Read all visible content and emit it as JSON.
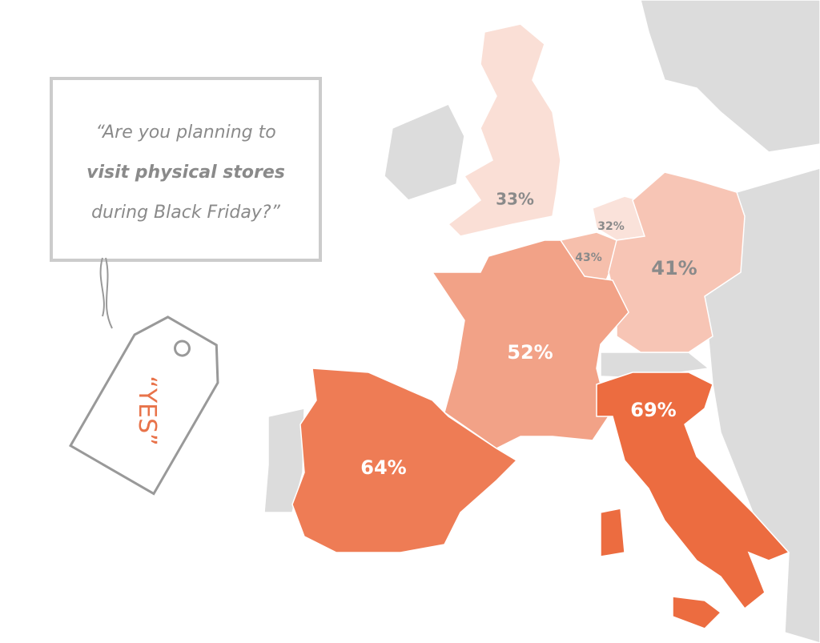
{
  "question": {
    "lines": [
      "“Are you planning to",
      "visit physical stores",
      "during Black Friday?”"
    ]
  },
  "tag": {
    "text": "“YES”"
  },
  "regions": [
    {
      "value": 33,
      "label": "33%",
      "label_color": "#8a8a8a"
    },
    {
      "value": 32,
      "label": "32%",
      "label_color": "#8a8a8a"
    },
    {
      "value": 43,
      "label": "43%",
      "label_color": "#8a8a8a"
    },
    {
      "value": 41,
      "label": "41%",
      "label_color": "#8a8a8a"
    },
    {
      "value": 52,
      "label": "52%",
      "label_color": "#ffffff"
    },
    {
      "value": 64,
      "label": "64%",
      "label_color": "#ffffff"
    },
    {
      "value": 69,
      "label": "69%",
      "label_color": "#ffffff"
    }
  ]
}
